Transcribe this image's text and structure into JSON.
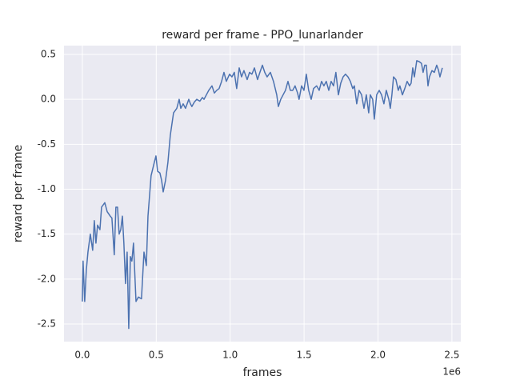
{
  "chart_data": {
    "type": "line",
    "title": "reward per frame - PPO_lunarlander",
    "x_label": "frames",
    "y_label": "reward per frame",
    "x_offset_label": "1e6",
    "xlim": [
      -0.124,
      2.56
    ],
    "ylim": [
      -2.696,
      0.598
    ],
    "xticks": [
      {
        "value": 0,
        "label": "0.0"
      },
      0.5,
      {
        "value": 1,
        "label": "1.0"
      },
      1.5,
      {
        "value": 2,
        "label": "2.0"
      },
      2.5
    ],
    "yticks": [
      -2.5,
      {
        "value": -2,
        "label": "-2.0"
      },
      -1.5,
      {
        "value": -1,
        "label": "-1.0"
      },
      -0.5,
      {
        "value": 0,
        "label": "0.0"
      },
      0.5
    ],
    "grid": true,
    "background": "#eaeaf2",
    "x": [
      0,
      0.005,
      0.016,
      0.027,
      0.038,
      0.054,
      0.07,
      0.081,
      0.092,
      0.103,
      0.119,
      0.13,
      0.152,
      0.168,
      0.189,
      0.2,
      0.216,
      0.227,
      0.238,
      0.249,
      0.26,
      0.271,
      0.281,
      0.292,
      0.303,
      0.314,
      0.325,
      0.335,
      0.346,
      0.363,
      0.379,
      0.4,
      0.417,
      0.433,
      0.444,
      0.465,
      0.487,
      0.498,
      0.509,
      0.525,
      0.536,
      0.547,
      0.563,
      0.579,
      0.595,
      0.617,
      0.639,
      0.655,
      0.666,
      0.682,
      0.698,
      0.72,
      0.731,
      0.741,
      0.758,
      0.774,
      0.795,
      0.812,
      0.823,
      0.839,
      0.855,
      0.877,
      0.893,
      0.909,
      0.925,
      0.942,
      0.958,
      0.974,
      0.996,
      1.012,
      1.028,
      1.044,
      1.061,
      1.077,
      1.093,
      1.115,
      1.131,
      1.147,
      1.164,
      1.185,
      1.201,
      1.218,
      1.234,
      1.25,
      1.272,
      1.293,
      1.315,
      1.326,
      1.342,
      1.358,
      1.374,
      1.391,
      1.407,
      1.423,
      1.439,
      1.456,
      1.466,
      1.483,
      1.499,
      1.515,
      1.531,
      1.548,
      1.564,
      1.585,
      1.602,
      1.618,
      1.634,
      1.65,
      1.667,
      1.683,
      1.699,
      1.715,
      1.732,
      1.748,
      1.764,
      1.78,
      1.797,
      1.813,
      1.829,
      1.84,
      1.856,
      1.872,
      1.889,
      1.905,
      1.921,
      1.937,
      1.948,
      1.964,
      1.975,
      1.991,
      2.008,
      2.024,
      2.04,
      2.056,
      2.073,
      2.083,
      2.094,
      2.105,
      2.121,
      2.137,
      2.148,
      2.165,
      2.181,
      2.197,
      2.213,
      2.224,
      2.235,
      2.246,
      2.262,
      2.278,
      2.294,
      2.305,
      2.316,
      2.327,
      2.338,
      2.348,
      2.365,
      2.381,
      2.397,
      2.408,
      2.419,
      2.435
    ],
    "series": [
      {
        "name": "reward per frame",
        "color": "#4c72b0",
        "values": [
          -2.25,
          -1.8,
          -2.25,
          -1.9,
          -1.7,
          -1.5,
          -1.68,
          -1.35,
          -1.6,
          -1.4,
          -1.45,
          -1.2,
          -1.15,
          -1.25,
          -1.3,
          -1.32,
          -1.73,
          -1.2,
          -1.2,
          -1.5,
          -1.45,
          -1.3,
          -1.6,
          -2.05,
          -1.7,
          -2.55,
          -1.75,
          -1.8,
          -1.6,
          -2.25,
          -2.2,
          -2.22,
          -1.7,
          -1.85,
          -1.3,
          -0.85,
          -0.7,
          -0.63,
          -0.8,
          -0.82,
          -0.9,
          -1.03,
          -0.9,
          -0.7,
          -0.4,
          -0.15,
          -0.1,
          0.0,
          -0.1,
          -0.05,
          -0.1,
          0.0,
          -0.05,
          -0.08,
          -0.03,
          0.0,
          -0.02,
          0.02,
          0.0,
          0.05,
          0.1,
          0.15,
          0.07,
          0.1,
          0.12,
          0.2,
          0.3,
          0.2,
          0.28,
          0.25,
          0.3,
          0.12,
          0.35,
          0.25,
          0.32,
          0.22,
          0.3,
          0.28,
          0.35,
          0.22,
          0.3,
          0.38,
          0.3,
          0.25,
          0.3,
          0.2,
          0.05,
          -0.08,
          0.0,
          0.05,
          0.1,
          0.2,
          0.1,
          0.1,
          0.15,
          0.07,
          0.0,
          0.15,
          0.1,
          0.28,
          0.1,
          0.0,
          0.12,
          0.15,
          0.1,
          0.2,
          0.15,
          0.2,
          0.1,
          0.2,
          0.15,
          0.3,
          0.05,
          0.18,
          0.25,
          0.28,
          0.25,
          0.2,
          0.12,
          0.15,
          -0.05,
          0.1,
          0.05,
          -0.1,
          0.05,
          -0.15,
          0.05,
          0.0,
          -0.22,
          0.05,
          0.1,
          0.05,
          -0.05,
          0.1,
          0.0,
          -0.1,
          0.05,
          0.25,
          0.22,
          0.1,
          0.15,
          0.05,
          0.12,
          0.2,
          0.15,
          0.18,
          0.35,
          0.25,
          0.43,
          0.42,
          0.4,
          0.3,
          0.38,
          0.38,
          0.15,
          0.25,
          0.32,
          0.3,
          0.38,
          0.33,
          0.25,
          0.35
        ]
      }
    ]
  }
}
